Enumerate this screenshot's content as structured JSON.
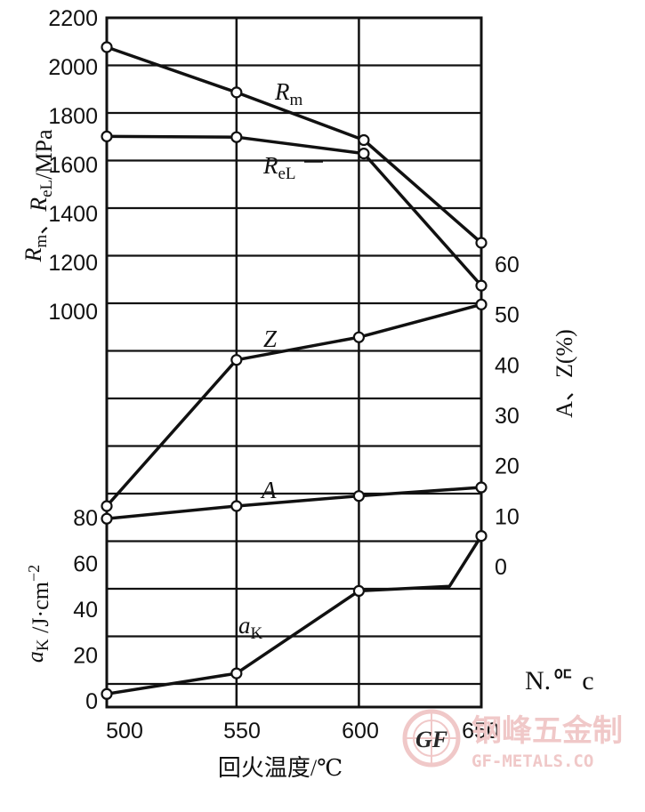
{
  "chart_data": {
    "type": "line",
    "x": [
      500,
      550,
      600,
      650
    ],
    "x_ticks": [
      "500",
      "550",
      "600",
      "650"
    ],
    "xlabel": "回火温度/℃",
    "xlim": [
      497,
      650
    ],
    "axes": [
      {
        "id": "strength",
        "label_parts": [
          {
            "main": "R",
            "sub": "m"
          },
          {
            "text": "、"
          },
          {
            "main": "R",
            "sub": "eL"
          },
          {
            "text": "/MPa"
          }
        ],
        "ticks": [
          "1000",
          "1200",
          "1400",
          "1600",
          "1800",
          "2000",
          "2200"
        ],
        "ylim": [
          1000,
          2200
        ],
        "side": "left"
      },
      {
        "id": "elongation",
        "label_parts": [
          {
            "text": "A、Z(%)"
          }
        ],
        "ticks": [
          "0",
          "10",
          "20",
          "30",
          "40",
          "50",
          "60"
        ],
        "ylim": [
          0,
          60
        ],
        "side": "right"
      },
      {
        "id": "impact",
        "label_parts": [
          {
            "main": "a",
            "sub": "K"
          },
          {
            "text": " /J·cm"
          },
          {
            "sup": "−2"
          }
        ],
        "ticks": [
          "0",
          "20",
          "40",
          "60",
          "80"
        ],
        "ylim": [
          0,
          80
        ],
        "side": "left"
      }
    ],
    "series": [
      {
        "name": "Rm",
        "label_main": "R",
        "label_sub": "m",
        "axis": "strength",
        "points": [
          [
            497,
            2080
          ],
          [
            550,
            1895
          ],
          [
            602,
            1700
          ],
          [
            650,
            1280
          ]
        ]
      },
      {
        "name": "ReL",
        "label_main": "R",
        "label_sub": "eL",
        "axis": "strength",
        "points": [
          [
            497,
            1715
          ],
          [
            550,
            1712
          ],
          [
            602,
            1645
          ],
          [
            650,
            1105
          ]
        ]
      },
      {
        "name": "Z",
        "label_main": "Z",
        "label_sub": "",
        "axis": "elongation",
        "points": [
          [
            497,
            12
          ],
          [
            550,
            41
          ],
          [
            600,
            45.5
          ],
          [
            650,
            52
          ]
        ]
      },
      {
        "name": "A",
        "label_main": "A",
        "label_sub": "",
        "axis": "elongation",
        "points": [
          [
            497,
            9.5
          ],
          [
            550,
            12
          ],
          [
            600,
            14
          ],
          [
            650,
            15.7
          ]
        ]
      },
      {
        "name": "aK",
        "label_main": "a",
        "label_sub": "K",
        "axis": "impact",
        "points": [
          [
            497,
            3
          ],
          [
            550,
            12
          ],
          [
            600,
            48
          ],
          [
            637,
            50
          ],
          [
            650,
            72
          ]
        ]
      }
    ],
    "grid": true,
    "watermark": {
      "text_cn": "钢峰五金制",
      "text_en": "GF-METALS.CO",
      "logo": "GF"
    },
    "scan_marks": "N.ᅂ c"
  }
}
